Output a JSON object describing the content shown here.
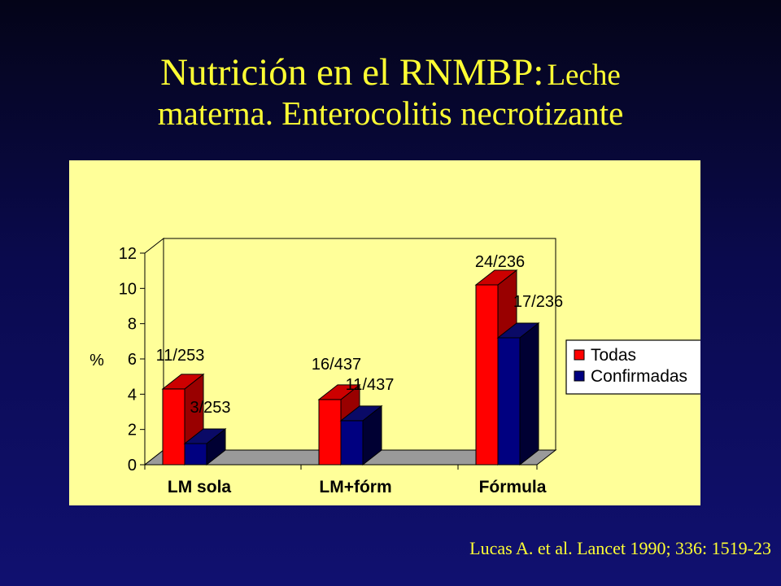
{
  "title": {
    "line1_main": "Nutrición en el RNMBP:",
    "line1_tail": "Leche",
    "line2": "materna. Enterocolitis necrotizante"
  },
  "citation": "Lucas A. et al. Lancet 1990; 336: 1519-23",
  "colors": {
    "background": "#0a0a4e",
    "title": "#ffff33",
    "panel": "#ffff99",
    "todas": "#ff0000",
    "confirmadas": "#000080"
  },
  "chart_data": {
    "type": "bar",
    "style": "3d-clustered",
    "title": "",
    "xlabel": "",
    "ylabel": "%",
    "ylim": [
      0,
      12
    ],
    "yticks": [
      0,
      2,
      4,
      6,
      8,
      10,
      12
    ],
    "grid": false,
    "legend_position": "right",
    "categories": [
      "LM sola",
      "LM+fórm",
      "Fórmula"
    ],
    "series": [
      {
        "name": "Todas",
        "color": "#ff0000",
        "values": [
          4.3,
          3.7,
          10.2
        ],
        "labels": [
          "11/253",
          "16/437",
          "24/236"
        ]
      },
      {
        "name": "Confirmadas",
        "color": "#000080",
        "values": [
          1.2,
          2.5,
          7.2
        ],
        "labels": [
          "3/253",
          "11/437",
          "17/236"
        ]
      }
    ]
  }
}
